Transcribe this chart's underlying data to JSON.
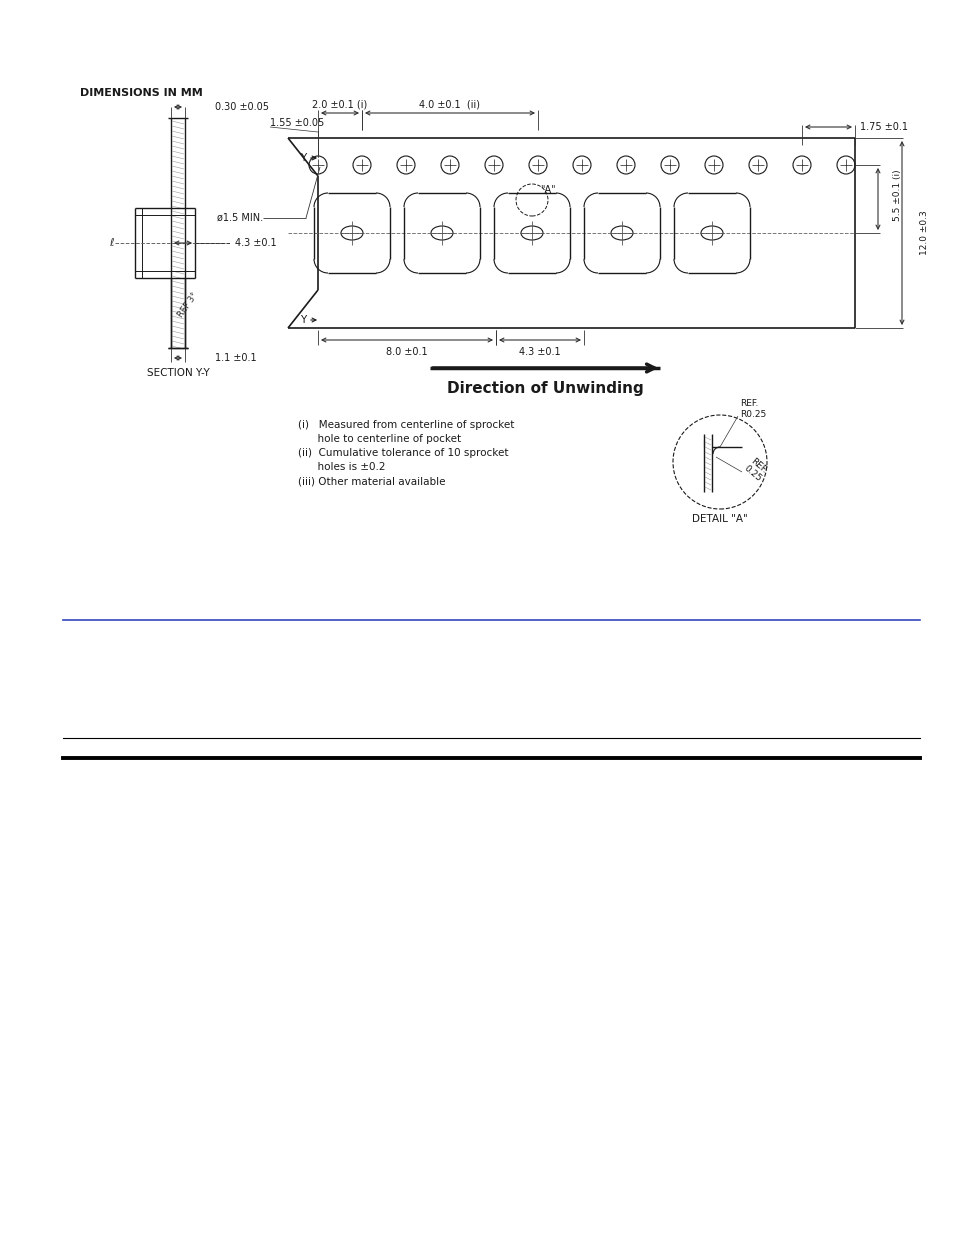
{
  "bg_color": "#ffffff",
  "line_color": "#1a1a1a",
  "dim_color": "#333333",
  "title": "DIMENSIONS IN MM",
  "section_label": "SECTION Y-Y",
  "direction_label": "Direction of Unwinding",
  "notes_line1": "(i)   Measured from centerline of sprocket",
  "notes_line2": "      hole to centerline of pocket",
  "notes_line3": "(ii)  Cumulative tolerance of 10 sprocket",
  "notes_line4": "      holes is ±0.2",
  "notes_line5": "(iii) Other material available",
  "d030": "0.30 ±0.05",
  "d155": "1.55 ±0.05",
  "d20": "2.0 ±0.1 (i)",
  "d40": "4.0 ±0.1  (ii)",
  "d175": "1.75 ±0.1",
  "d43h": "4.3 ±0.1",
  "d43b": "4.3 ±0.1",
  "d80": "8.0 ±0.1",
  "d11": "1.1 ±0.1",
  "d55": "5.5 ±0.1 (i)",
  "d120": "12.0 ±0.3",
  "phi15": "ø1.5 MIN.",
  "ref3": "REF 3°",
  "detail_a_label": "DETAIL \"A\"",
  "ref_r025": "REF.\nR0.25",
  "ref_025": "REF.\n0.25"
}
